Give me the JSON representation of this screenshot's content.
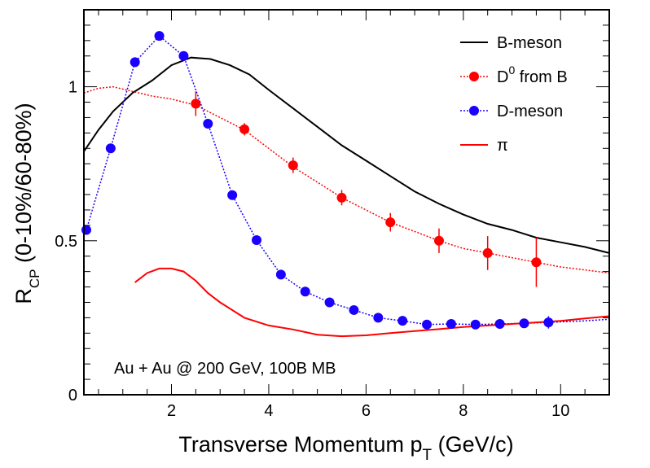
{
  "chart_data": {
    "type": "line",
    "xlabel": "Transverse Momentum p",
    "xlabel_sub": "T",
    "xlabel_unit": " (GeV/c)",
    "ylabel": "R",
    "ylabel_sub": "CP",
    "ylabel_tail": " (0-10%/60-80%)",
    "xlim": [
      0.2,
      11.0
    ],
    "ylim": [
      0,
      1.25
    ],
    "x_ticks": [
      2,
      4,
      6,
      8,
      10
    ],
    "y_ticks": [
      0,
      0.5,
      1
    ],
    "annotation": "Au + Au @ 200 GeV, 100B MB",
    "legend_placement": "top-right",
    "series": [
      {
        "name": "B-meson",
        "style": "solid-line",
        "color": "#000000",
        "x": [
          0.2,
          0.5,
          0.8,
          1.2,
          1.6,
          2.0,
          2.4,
          2.8,
          3.2,
          3.6,
          4.0,
          4.5,
          5.0,
          5.5,
          6.0,
          6.5,
          7.0,
          7.5,
          8.0,
          8.5,
          9.0,
          9.5,
          10.0,
          10.5,
          11.0
        ],
        "y": [
          0.79,
          0.86,
          0.92,
          0.98,
          1.02,
          1.07,
          1.095,
          1.09,
          1.07,
          1.04,
          0.99,
          0.93,
          0.87,
          0.81,
          0.76,
          0.71,
          0.66,
          0.62,
          0.585,
          0.555,
          0.535,
          0.51,
          0.495,
          0.48,
          0.46
        ]
      },
      {
        "name": "D0 from B",
        "label_main": "D",
        "label_sup": "0",
        "label_tail": " from B",
        "style": "dotted-line-with-markers",
        "color": "#ff0000",
        "x": [
          0.2,
          0.5,
          0.8,
          1.2,
          1.6,
          2.0,
          2.5,
          3.0,
          3.5,
          4.0,
          4.5,
          5.0,
          5.5,
          6.0,
          6.5,
          7.0,
          7.5,
          8.0,
          8.5,
          9.0,
          9.5,
          10.0,
          10.5,
          11.0
        ],
        "y": [
          0.98,
          0.995,
          1.0,
          0.985,
          0.97,
          0.96,
          0.94,
          0.9,
          0.86,
          0.8,
          0.74,
          0.69,
          0.64,
          0.6,
          0.56,
          0.53,
          0.5,
          0.475,
          0.46,
          0.445,
          0.43,
          0.415,
          0.405,
          0.395
        ],
        "points": [
          {
            "x": 2.5,
            "y": 0.945,
            "err": 0.04
          },
          {
            "x": 3.5,
            "y": 0.862,
            "err": 0.02
          },
          {
            "x": 4.5,
            "y": 0.745,
            "err": 0.025
          },
          {
            "x": 5.5,
            "y": 0.64,
            "err": 0.025
          },
          {
            "x": 6.5,
            "y": 0.56,
            "err": 0.03
          },
          {
            "x": 7.5,
            "y": 0.5,
            "err": 0.04
          },
          {
            "x": 8.5,
            "y": 0.46,
            "err": 0.055
          },
          {
            "x": 9.5,
            "y": 0.43,
            "err": 0.08
          }
        ]
      },
      {
        "name": "D-meson",
        "style": "dotted-line-with-markers",
        "color": "#1a00ff",
        "x": [
          0.25,
          0.75,
          1.25,
          1.75,
          2.25,
          2.75,
          3.25,
          3.75,
          4.25,
          4.75,
          5.25,
          5.75,
          6.25,
          6.75,
          7.25,
          7.75,
          8.25,
          8.75,
          9.25,
          9.75,
          10.5,
          11.0
        ],
        "y": [
          0.535,
          0.8,
          1.08,
          1.165,
          1.1,
          0.88,
          0.648,
          0.502,
          0.39,
          0.335,
          0.3,
          0.275,
          0.25,
          0.24,
          0.228,
          0.23,
          0.228,
          0.23,
          0.232,
          0.235,
          0.24,
          0.245
        ],
        "points": [
          {
            "x": 0.25,
            "y": 0.535,
            "err": 0
          },
          {
            "x": 0.75,
            "y": 0.8,
            "err": 0
          },
          {
            "x": 1.25,
            "y": 1.08,
            "err": 0
          },
          {
            "x": 1.75,
            "y": 1.165,
            "err": 0
          },
          {
            "x": 2.25,
            "y": 1.1,
            "err": 0
          },
          {
            "x": 2.75,
            "y": 0.88,
            "err": 0
          },
          {
            "x": 3.25,
            "y": 0.648,
            "err": 0
          },
          {
            "x": 3.75,
            "y": 0.502,
            "err": 0
          },
          {
            "x": 4.25,
            "y": 0.39,
            "err": 0
          },
          {
            "x": 4.75,
            "y": 0.335,
            "err": 0
          },
          {
            "x": 5.25,
            "y": 0.3,
            "err": 0
          },
          {
            "x": 5.75,
            "y": 0.275,
            "err": 0
          },
          {
            "x": 6.25,
            "y": 0.25,
            "err": 0
          },
          {
            "x": 6.75,
            "y": 0.24,
            "err": 0
          },
          {
            "x": 7.25,
            "y": 0.228,
            "err": 0
          },
          {
            "x": 7.75,
            "y": 0.23,
            "err": 0
          },
          {
            "x": 8.25,
            "y": 0.228,
            "err": 0
          },
          {
            "x": 8.75,
            "y": 0.23,
            "err": 0
          },
          {
            "x": 9.25,
            "y": 0.232,
            "err": 0
          },
          {
            "x": 9.75,
            "y": 0.235,
            "err": 0.02
          }
        ]
      },
      {
        "name": "π",
        "style": "solid-line",
        "color": "#ff0000",
        "x": [
          1.25,
          1.5,
          1.75,
          2.0,
          2.25,
          2.5,
          2.75,
          3.0,
          3.5,
          4.0,
          4.5,
          5.0,
          5.5,
          6.0,
          6.5,
          7.0,
          7.5,
          8.0,
          8.5,
          9.0,
          9.5,
          10.0,
          10.5,
          11.0
        ],
        "y": [
          0.365,
          0.395,
          0.41,
          0.41,
          0.4,
          0.37,
          0.33,
          0.3,
          0.25,
          0.225,
          0.212,
          0.195,
          0.19,
          0.193,
          0.2,
          0.207,
          0.213,
          0.22,
          0.225,
          0.23,
          0.235,
          0.24,
          0.248,
          0.255
        ]
      }
    ]
  }
}
